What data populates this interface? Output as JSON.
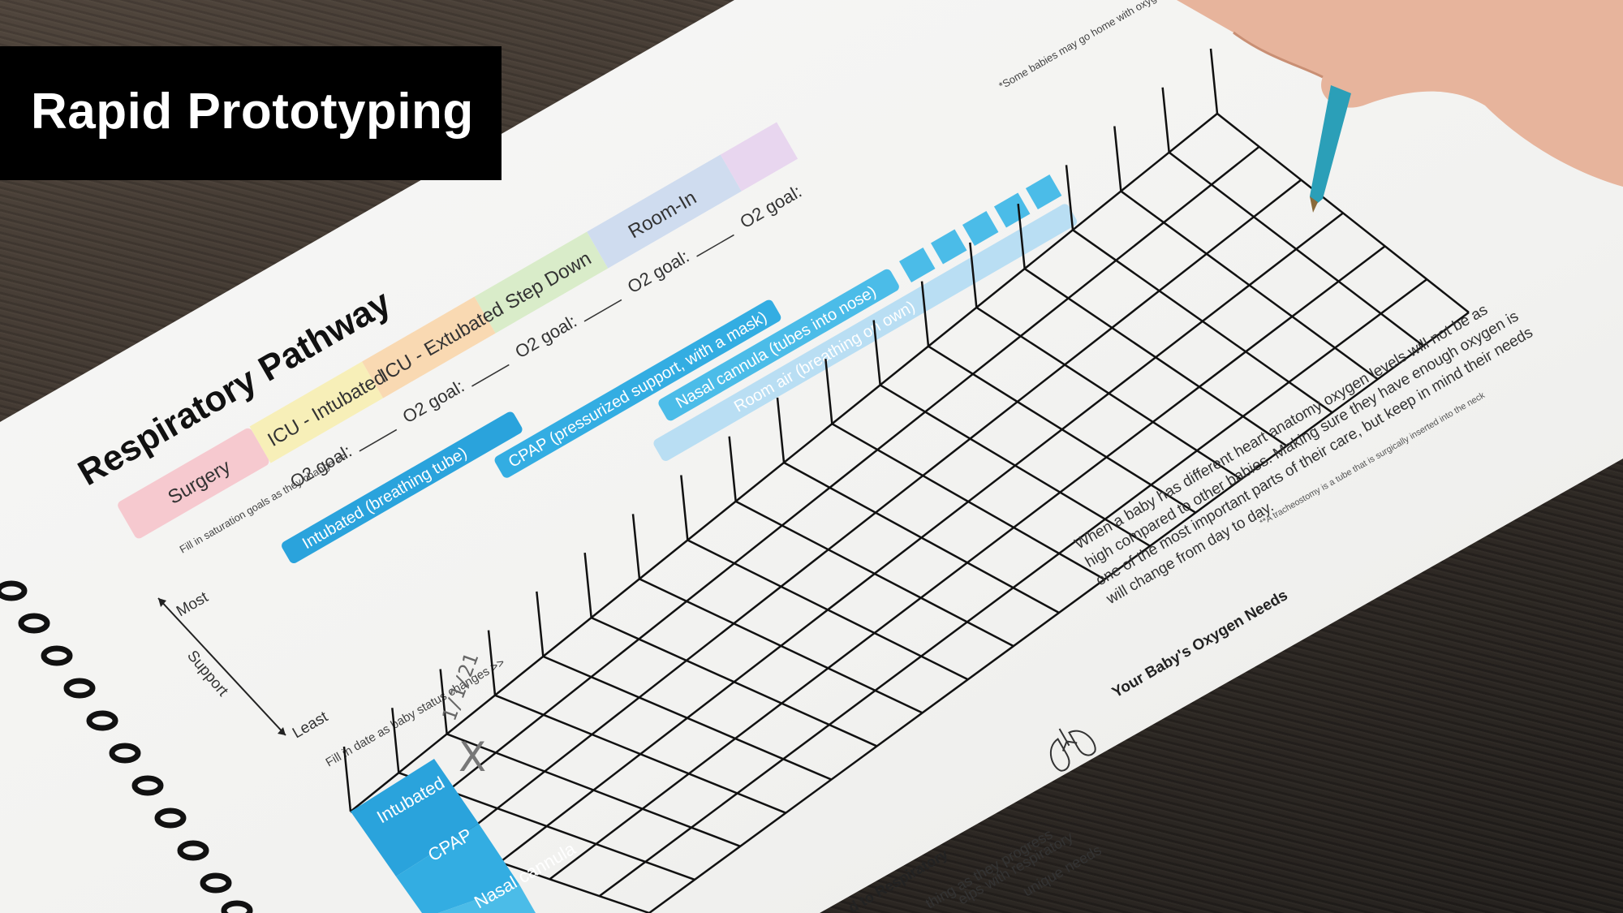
{
  "banner": {
    "title": "Rapid Prototyping"
  },
  "worksheet": {
    "title": "Respiratory Pathway",
    "stages": [
      {
        "label": "Surgery",
        "color": "#f6c9cf"
      },
      {
        "label": "ICU - Intubated",
        "color": "#f7efb8"
      },
      {
        "label": "ICU - Extubated",
        "color": "#f9d9b2"
      },
      {
        "label": "Step Down",
        "color": "#d9ecc9"
      },
      {
        "label": "Room-In",
        "color": "#cfdcef"
      }
    ],
    "o2_goal_label": "O2 goal:",
    "saturation_note": "Fill in saturation goals as they change >>",
    "support_note": "*Some babies may go home with oxygen for additional support",
    "support_bars": [
      {
        "label": "Intubated (breathing tube)",
        "color": "#2aa3dc"
      },
      {
        "label": "CPAP (pressurized support, with a mask)",
        "color": "#33ade2"
      },
      {
        "label": "Nasal cannula (tubes into nose)",
        "color": "#4bbce8"
      },
      {
        "label": "Room air (breathing on own)",
        "color": "#b9def3"
      }
    ],
    "axis": {
      "most": "Most",
      "support": "Support",
      "least": "Least"
    },
    "date_note": "Fill in date as baby status changes >>",
    "first_date": "1/1/21",
    "mark": "X",
    "row_labels": [
      "Intubated",
      "CPAP",
      "Nasal cannula"
    ],
    "tracheostomy_note": "**A tracheostomy is a tube that is surgically inserted into the neck",
    "oxygen_section": {
      "heading": "Your Baby's Oxygen Needs",
      "body": "When a baby has different heart anatomy oxygen levels will not be as high compared to other babies. Making sure they have enough oxygen is one of the most important parts of their care, but keep in mind their needs will change from day to day.",
      "icon": "lungs-icon"
    },
    "bottom_fragments": [
      "d to Respiratory",
      "thing as they progress",
      "elps with respiratory",
      "unique needs"
    ]
  }
}
